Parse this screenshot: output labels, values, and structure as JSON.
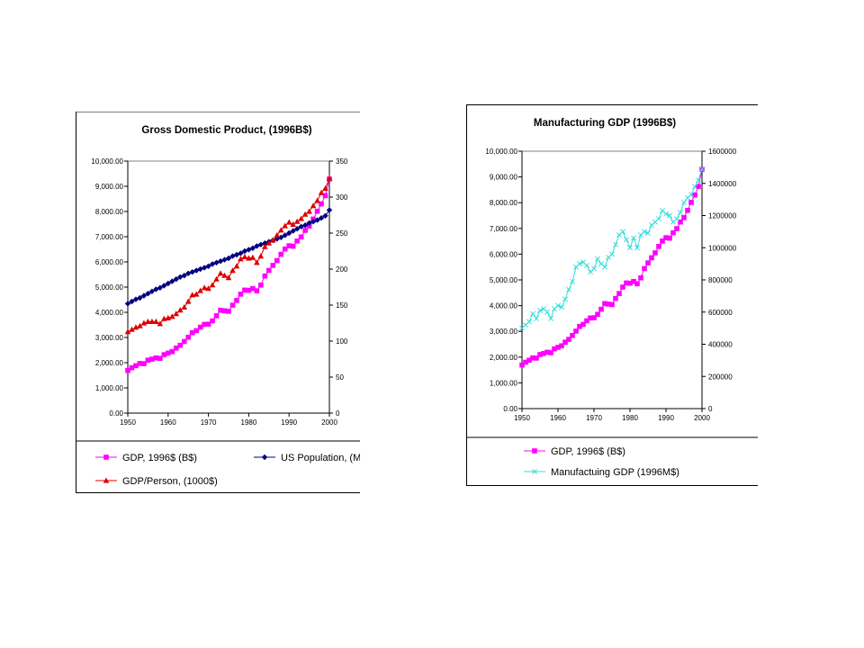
{
  "chart_data": [
    {
      "type": "line",
      "title": "Gross Domestic Product, (1996B$)",
      "x_ticks": [
        "1950",
        "1960",
        "1970",
        "1980",
        "1990",
        "2000"
      ],
      "xlim": [
        1950,
        2000
      ],
      "y_left_ticks": [
        "0.00",
        "1,000.00",
        "2,000.00",
        "3,000.00",
        "4,000.00",
        "5,000.00",
        "6,000.00",
        "7,000.00",
        "8,000.00",
        "9,000.00",
        "10,000.00"
      ],
      "y_left_lim": [
        0,
        10000
      ],
      "y_right_ticks": [
        "0",
        "50",
        "100",
        "150",
        "200",
        "250",
        "300",
        "350"
      ],
      "y_right_lim": [
        0,
        350
      ],
      "grid": false,
      "legend_position": "bottom",
      "series": [
        {
          "name": "GDP, 1996$ (B$)",
          "axis": "left",
          "color": "#ff00ff",
          "marker": "square",
          "x": [
            1950,
            1951,
            1952,
            1953,
            1954,
            1955,
            1956,
            1957,
            1958,
            1959,
            1960,
            1961,
            1962,
            1963,
            1964,
            1965,
            1966,
            1967,
            1968,
            1969,
            1970,
            1971,
            1972,
            1973,
            1974,
            1975,
            1976,
            1977,
            1978,
            1979,
            1980,
            1981,
            1982,
            1983,
            1984,
            1985,
            1986,
            1987,
            1988,
            1989,
            1990,
            1991,
            1992,
            1993,
            1994,
            1995,
            1996,
            1997,
            1998,
            1999,
            2000
          ],
          "y": [
            1690,
            1800,
            1880,
            1970,
            1960,
            2100,
            2140,
            2190,
            2170,
            2320,
            2380,
            2440,
            2580,
            2690,
            2840,
            3010,
            3190,
            3270,
            3410,
            3520,
            3530,
            3660,
            3860,
            4080,
            4060,
            4040,
            4280,
            4470,
            4720,
            4880,
            4870,
            4940,
            4850,
            5080,
            5440,
            5660,
            5860,
            6050,
            6300,
            6510,
            6640,
            6620,
            6830,
            6990,
            7250,
            7420,
            7700,
            8010,
            8300,
            8630,
            9290
          ]
        },
        {
          "name": "US Population, (Millions)",
          "axis": "right",
          "color": "#000080",
          "marker": "diamond",
          "x": [
            1950,
            1951,
            1952,
            1953,
            1954,
            1955,
            1956,
            1957,
            1958,
            1959,
            1960,
            1961,
            1962,
            1963,
            1964,
            1965,
            1966,
            1967,
            1968,
            1969,
            1970,
            1971,
            1972,
            1973,
            1974,
            1975,
            1976,
            1977,
            1978,
            1979,
            1980,
            1981,
            1982,
            1983,
            1984,
            1985,
            1986,
            1987,
            1988,
            1989,
            1990,
            1991,
            1992,
            1993,
            1994,
            1995,
            1996,
            1997,
            1998,
            1999,
            2000
          ],
          "y": [
            152,
            155,
            158,
            160,
            163,
            166,
            169,
            172,
            174,
            177,
            180,
            183,
            186,
            189,
            191,
            194,
            196,
            198,
            200,
            202,
            204,
            207,
            209,
            211,
            213,
            215,
            218,
            220,
            222,
            225,
            227,
            229,
            232,
            234,
            236,
            238,
            240,
            242,
            244,
            247,
            250,
            253,
            256,
            259,
            261,
            264,
            266,
            268,
            271,
            274,
            282
          ]
        },
        {
          "name": "GDP/Person, (1000$)",
          "axis": "right",
          "color": "#dd0000",
          "marker": "triangle",
          "x": [
            1950,
            1951,
            1952,
            1953,
            1954,
            1955,
            1956,
            1957,
            1958,
            1959,
            1960,
            1961,
            1962,
            1963,
            1964,
            1965,
            1966,
            1967,
            1968,
            1969,
            1970,
            1971,
            1972,
            1973,
            1974,
            1975,
            1976,
            1977,
            1978,
            1979,
            1980,
            1981,
            1982,
            1983,
            1984,
            1985,
            1986,
            1987,
            1988,
            1989,
            1990,
            1991,
            1992,
            1993,
            1994,
            1995,
            1996,
            1997,
            1998,
            1999,
            2000
          ],
          "y": [
            113,
            116,
            119,
            121,
            125,
            127,
            127,
            127,
            124,
            131,
            132,
            134,
            138,
            143,
            147,
            155,
            164,
            165,
            170,
            174,
            173,
            178,
            186,
            194,
            191,
            188,
            198,
            204,
            214,
            217,
            215,
            216,
            209,
            218,
            231,
            236,
            240,
            247,
            254,
            260,
            265,
            262,
            266,
            270,
            276,
            280,
            288,
            295,
            306,
            312,
            326
          ]
        }
      ],
      "legend": {
        "items": [
          "GDP, 1996$ (B$)",
          "US Population, (M",
          "GDP/Person, (1000$)"
        ]
      }
    },
    {
      "type": "line",
      "title": "Manufacturing GDP (1996B$)",
      "x_ticks": [
        "1950",
        "1960",
        "1970",
        "1980",
        "1990",
        "2000"
      ],
      "xlim": [
        1950,
        2000
      ],
      "y_left_ticks": [
        "0.00",
        "1,000.00",
        "2,000.00",
        "3,000.00",
        "4,000.00",
        "5,000.00",
        "6,000.00",
        "7,000.00",
        "8,000.00",
        "9,000.00",
        "10,000.00"
      ],
      "y_left_lim": [
        0,
        10000
      ],
      "y_right_ticks": [
        "0",
        "200000",
        "400000",
        "600000",
        "800000",
        "1000000",
        "1200000",
        "1400000",
        "1600000"
      ],
      "y_right_lim": [
        0,
        1600000
      ],
      "grid": false,
      "legend_position": "bottom",
      "series": [
        {
          "name": "GDP, 1996$ (B$)",
          "axis": "left",
          "color": "#ff00ff",
          "marker": "square",
          "x": [
            1950,
            1951,
            1952,
            1953,
            1954,
            1955,
            1956,
            1957,
            1958,
            1959,
            1960,
            1961,
            1962,
            1963,
            1964,
            1965,
            1966,
            1967,
            1968,
            1969,
            1970,
            1971,
            1972,
            1973,
            1974,
            1975,
            1976,
            1977,
            1978,
            1979,
            1980,
            1981,
            1982,
            1983,
            1984,
            1985,
            1986,
            1987,
            1988,
            1989,
            1990,
            1991,
            1992,
            1993,
            1994,
            1995,
            1996,
            1997,
            1998,
            1999,
            2000
          ],
          "y": [
            1690,
            1800,
            1880,
            1970,
            1960,
            2100,
            2140,
            2190,
            2170,
            2320,
            2380,
            2440,
            2580,
            2690,
            2840,
            3010,
            3190,
            3270,
            3410,
            3520,
            3530,
            3660,
            3860,
            4080,
            4060,
            4040,
            4280,
            4470,
            4720,
            4880,
            4870,
            4940,
            4850,
            5080,
            5440,
            5660,
            5860,
            6050,
            6300,
            6510,
            6640,
            6620,
            6830,
            6990,
            7250,
            7420,
            7700,
            8010,
            8300,
            8630,
            9290
          ]
        },
        {
          "name": "Manufactuing GDP (1996M$)",
          "axis": "right",
          "color": "#33dddd",
          "marker": "x",
          "x": [
            1950,
            1951,
            1952,
            1953,
            1954,
            1955,
            1956,
            1957,
            1958,
            1959,
            1960,
            1961,
            1962,
            1963,
            1964,
            1965,
            1966,
            1967,
            1968,
            1969,
            1970,
            1971,
            1972,
            1973,
            1974,
            1975,
            1976,
            1977,
            1978,
            1979,
            1980,
            1981,
            1982,
            1983,
            1984,
            1985,
            1986,
            1987,
            1988,
            1989,
            1990,
            1991,
            1992,
            1993,
            1994,
            1995,
            1996,
            1997,
            1998,
            1999,
            2000
          ],
          "y": [
            500000,
            520000,
            540000,
            590000,
            560000,
            610000,
            620000,
            600000,
            560000,
            620000,
            640000,
            630000,
            680000,
            740000,
            790000,
            880000,
            900000,
            910000,
            890000,
            850000,
            870000,
            930000,
            900000,
            880000,
            940000,
            960000,
            1020000,
            1080000,
            1100000,
            1050000,
            1000000,
            1060000,
            1000000,
            1080000,
            1100000,
            1090000,
            1140000,
            1160000,
            1180000,
            1230000,
            1210000,
            1200000,
            1160000,
            1180000,
            1220000,
            1280000,
            1310000,
            1330000,
            1380000,
            1420000,
            1490000
          ]
        }
      ],
      "legend": {
        "items": [
          "GDP, 1996$ (B$)",
          "Manufactuing GDP (1996M$)"
        ]
      }
    }
  ]
}
